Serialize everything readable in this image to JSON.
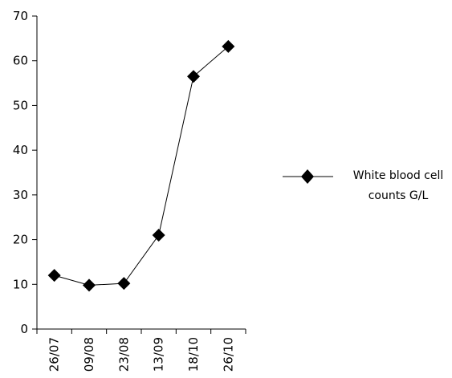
{
  "chart_data": {
    "type": "line",
    "title": "",
    "xlabel": "",
    "ylabel": "",
    "categories": [
      "26/07",
      "09/08",
      "23/08",
      "13/09",
      "18/10",
      "26/10"
    ],
    "ylim": [
      0,
      70
    ],
    "yticks": [
      0,
      10,
      20,
      30,
      40,
      50,
      60,
      70
    ],
    "grid": false,
    "legend_position": "right",
    "series": [
      {
        "name_lines": [
          "White blood cell",
          "counts G/L"
        ],
        "marker": "diamond",
        "color": "#000000",
        "values": [
          12,
          9.8,
          10.2,
          21,
          56.5,
          63.2
        ]
      }
    ]
  }
}
